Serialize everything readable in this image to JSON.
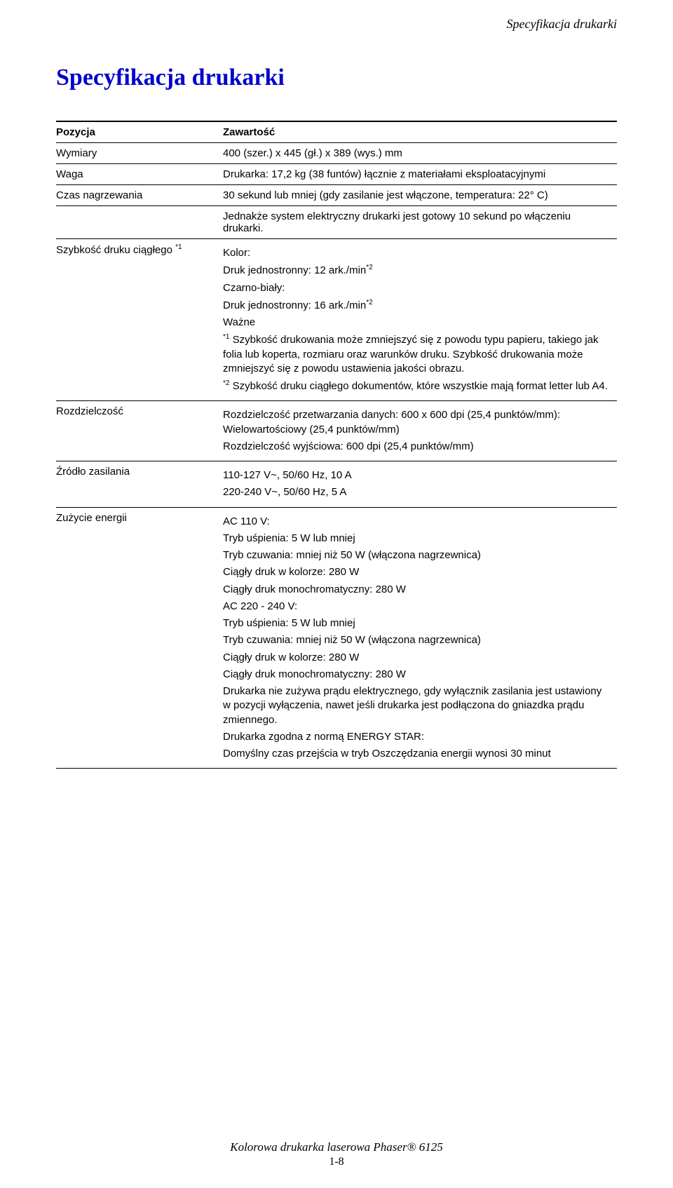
{
  "runningHead": "Specyfikacja drukarki",
  "title": "Specyfikacja drukarki",
  "header": {
    "col1": "Pozycja",
    "col2": "Zawartość"
  },
  "rows": {
    "dim": {
      "label": "Wymiary",
      "value": "400 (szer.) x 445 (gł.) x 389 (wys.) mm"
    },
    "weight": {
      "label": "Waga",
      "value": "Drukarka: 17,2 kg (38 funtów) łącznie z materiałami eksploatacyjnymi"
    },
    "warm": {
      "label": "Czas nagrzewania",
      "value": "30 sekund lub mniej (gdy zasilanie jest włączone, temperatura: 22° C)"
    },
    "blank": {
      "value": "Jednakże system elektryczny drukarki jest gotowy 10 sekund po włączeniu drukarki."
    },
    "speed": {
      "label": "Szybkość druku ciągłego ",
      "labelSup": "*1",
      "color": "Kolor:",
      "colorLine": "Druk jednostronny: 12 ark./min",
      "colorSup": "*2",
      "bw": "Czarno-biały:",
      "bwLine": "Druk jednostronny: 16 ark./min",
      "bwSup": "*2",
      "important": "Ważne",
      "note1sup": "*1",
      "note1": " Szybkość drukowania może zmniejszyć się z powodu typu papieru, takiego jak folia lub koperta, rozmiaru oraz warunków druku. Szybkość drukowania może zmniejszyć się z powodu ustawienia jakości obrazu.",
      "note2sup": "*2",
      "note2": " Szybkość druku ciągłego dokumentów, które wszystkie mają format letter lub A4."
    },
    "res": {
      "label": "Rozdzielczość",
      "line1": "Rozdzielczość przetwarzania danych: 600 x 600 dpi (25,4 punktów/mm): Wielowartościowy (25,4 punktów/mm)",
      "line2": "Rozdzielczość wyjściowa: 600 dpi (25,4 punktów/mm)"
    },
    "power": {
      "label": "Źródło zasilania",
      "line1": "110-127 V~, 50/60 Hz, 10 A",
      "line2": "220-240 V~, 50/60 Hz, 5 A"
    },
    "energy": {
      "label": "Zużycie energii",
      "ac110": "AC 110 V:",
      "sleep": "Tryb uśpienia: 5 W lub mniej",
      "standby": "Tryb czuwania: mniej niż 50 W (włączona nagrzewnica)",
      "colorCont": "Ciągły druk w kolorze: 280 W",
      "monoCont": "Ciągły druk monochromatyczny: 280 W",
      "ac220": "AC 220 - 240 V:",
      "noPower": "Drukarka nie zużywa prądu elektrycznego, gdy wyłącznik zasilania jest ustawiony w pozycji wyłączenia, nawet jeśli drukarka jest podłączona do gniazdka prądu zmiennego.",
      "estar": "Drukarka zgodna z normą ENERGY STAR:",
      "estarDetail": "Domyślny czas przejścia w tryb Oszczędzania energii wynosi 30 minut"
    }
  },
  "footer": {
    "line1": "Kolorowa drukarka laserowa Phaser® 6125",
    "line2": "1-8"
  }
}
